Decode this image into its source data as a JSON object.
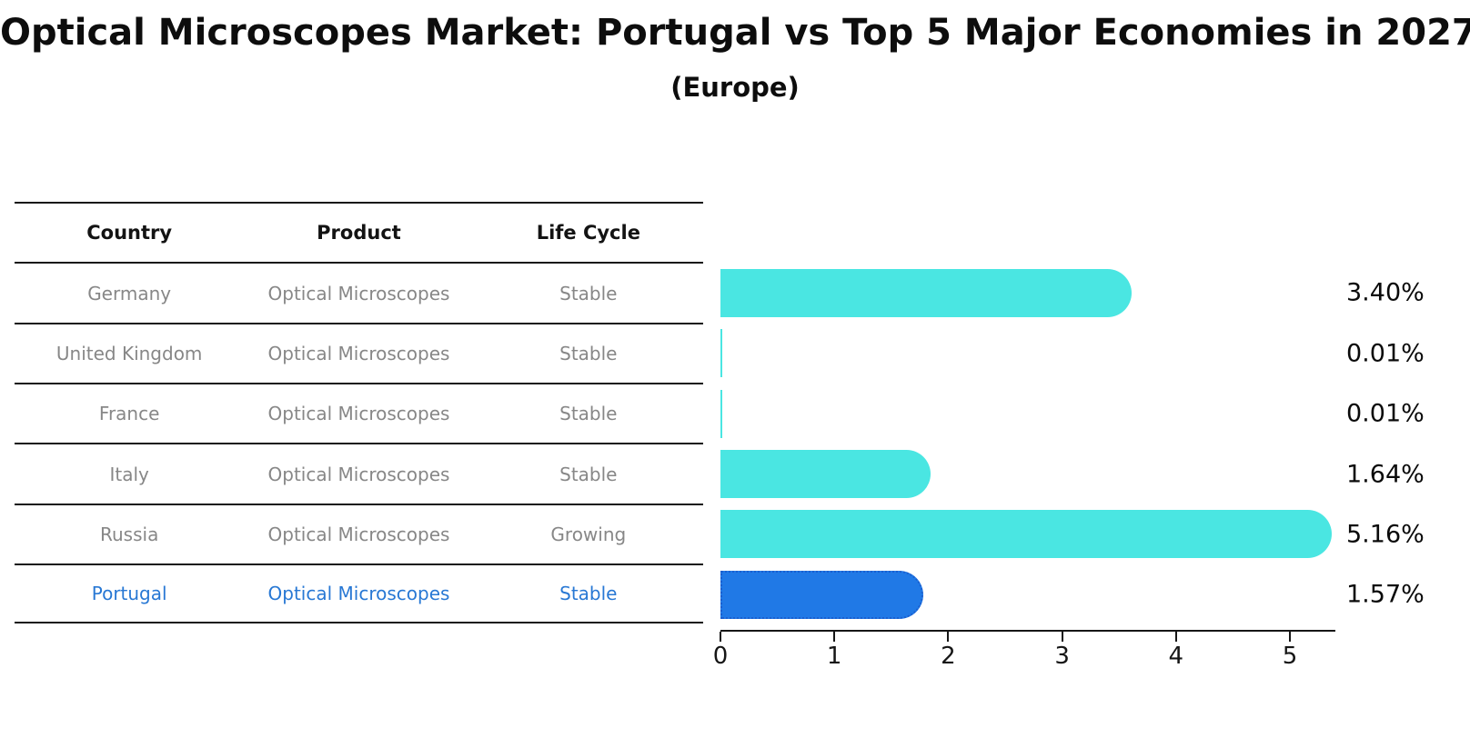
{
  "title": "Optical Microscopes Market: Portugal vs Top 5 Major Economies in 2027",
  "subtitle": "(Europe)",
  "table": {
    "headers": [
      "Country",
      "Product",
      "Life Cycle"
    ]
  },
  "chart_data": {
    "type": "bar",
    "orientation": "horizontal",
    "title": "Optical Microscopes Market: Portugal vs Top 5 Major Economies in 2027",
    "subtitle": "(Europe)",
    "categories": [
      "Germany",
      "United Kingdom",
      "France",
      "Italy",
      "Russia",
      "Portugal"
    ],
    "values": [
      3.4,
      0.01,
      0.01,
      1.64,
      5.16,
      1.57
    ],
    "value_labels": [
      "3.40%",
      "0.01%",
      "0.01%",
      "1.64%",
      "5.16%",
      "1.57%"
    ],
    "rows": [
      {
        "country": "Germany",
        "product": "Optical Microscopes",
        "life_cycle": "Stable",
        "value": 3.4,
        "label": "3.40%",
        "highlighted": false
      },
      {
        "country": "United Kingdom",
        "product": "Optical Microscopes",
        "life_cycle": "Stable",
        "value": 0.01,
        "label": "0.01%",
        "highlighted": false
      },
      {
        "country": "France",
        "product": "Optical Microscopes",
        "life_cycle": "Stable",
        "value": 0.01,
        "label": "0.01%",
        "highlighted": false
      },
      {
        "country": "Italy",
        "product": "Optical Microscopes",
        "life_cycle": "Stable",
        "value": 1.64,
        "label": "1.64%",
        "highlighted": false
      },
      {
        "country": "Russia",
        "product": "Optical Microscopes",
        "life_cycle": "Growing",
        "value": 5.16,
        "label": "5.16%",
        "highlighted": false
      },
      {
        "country": "Portugal",
        "product": "Optical Microscopes",
        "life_cycle": "Stable",
        "value": 1.57,
        "label": "1.57%",
        "highlighted": true
      }
    ],
    "xlabel": "",
    "ylabel": "",
    "xlim": [
      0,
      5.4
    ],
    "x_ticks": [
      "0",
      "1",
      "2",
      "3",
      "4",
      "5"
    ],
    "grid": false,
    "legend": "none",
    "colors": {
      "bar": "#4ae6e2",
      "highlight_bar": "#2079e6",
      "highlight_border": "#1a5fd0",
      "row_text": "#878787",
      "highlight_text": "#2878d4",
      "header_text": "#131313",
      "value_label": "#0a0a0a",
      "axis": "#161616",
      "background": "#ffffff"
    }
  }
}
